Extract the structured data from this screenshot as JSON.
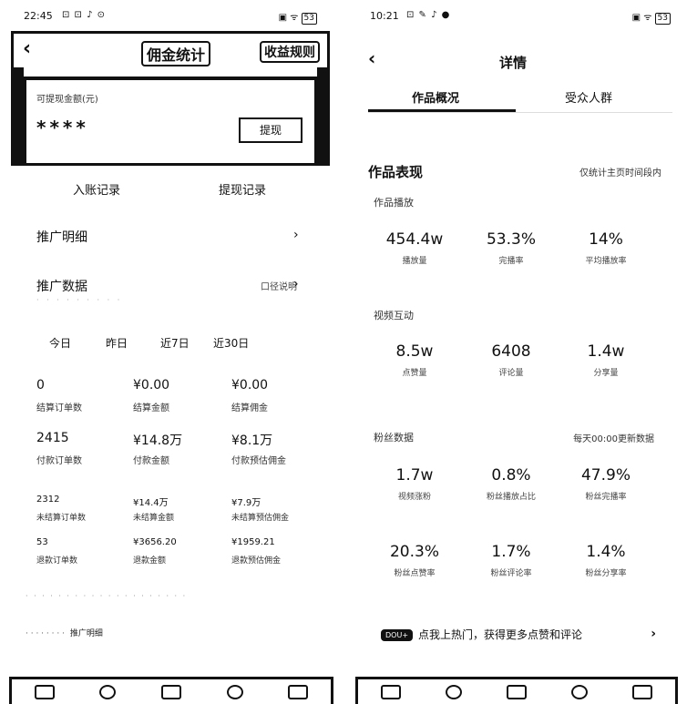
{
  "left": {
    "status": {
      "time": "22:45",
      "icons": "⊡ ⊡ ♪ ⊙",
      "right_icons": "▣ ᯤ",
      "battery": "53"
    },
    "header": {
      "back_icon": "‹",
      "title": "佣金统计",
      "rule_label": "收益规则"
    },
    "balance": {
      "label": "可提现金额(元)",
      "value": "****",
      "withdraw_label": "提现"
    },
    "tabs": [
      "入账记录",
      "提现记录"
    ],
    "rows": {
      "detail": "推广明细",
      "data": "推广数据",
      "data_hint": "口径说明",
      "data_sub": "· · · · · · · · ·"
    },
    "periods": [
      "今日",
      "昨日",
      "近7日",
      "近30日"
    ],
    "grid": [
      [
        {
          "value": "0",
          "label": "结算订单数"
        },
        {
          "value": "¥0.00",
          "label": "结算金额"
        },
        {
          "value": "¥0.00",
          "label": "结算佣金"
        }
      ],
      [
        {
          "value": "2415",
          "label": "付款订单数"
        },
        {
          "value": "¥14.8万",
          "label": "付款金额"
        },
        {
          "value": "¥8.1万",
          "label": "付款预估佣金"
        }
      ],
      [
        {
          "value": "2312",
          "label": "未结算订单数"
        },
        {
          "value": "¥14.4万",
          "label": "未结算金额"
        },
        {
          "value": "¥7.9万",
          "label": "未结算预估佣金"
        }
      ],
      [
        {
          "value": "53",
          "label": "退款订单数"
        },
        {
          "value": "¥3656.20",
          "label": "退款金额"
        },
        {
          "value": "¥1959.21",
          "label": "退款预估佣金"
        }
      ]
    ],
    "footer": {
      "line1": "· · · · · · · · · · · · · · · · · · · ·",
      "line2": "· · · · · · · ·",
      "link": "推广明细"
    }
  },
  "right": {
    "status": {
      "time": "10:21",
      "icons": "⊡ ✎ ♪ ●",
      "right_icons": "▣ ᯤ",
      "battery": "53"
    },
    "header": {
      "back_icon": "‹",
      "title": "详情"
    },
    "tabs": [
      "作品概况",
      "受众人群"
    ],
    "section": {
      "title": "作品表现",
      "hint": "仅统计主页时间段内"
    },
    "groups": [
      {
        "title": "作品播放",
        "hint": "",
        "metrics": [
          {
            "value": "454.4w",
            "label": "播放量"
          },
          {
            "value": "53.3%",
            "label": "完播率"
          },
          {
            "value": "14%",
            "label": "平均播放率"
          }
        ]
      },
      {
        "title": "视频互动",
        "hint": "",
        "metrics": [
          {
            "value": "8.5w",
            "label": "点赞量"
          },
          {
            "value": "6408",
            "label": "评论量"
          },
          {
            "value": "1.4w",
            "label": "分享量"
          }
        ]
      },
      {
        "title": "粉丝数据",
        "hint": "每天00:00更新数据",
        "metrics": [
          {
            "value": "1.7w",
            "label": "视频涨粉"
          },
          {
            "value": "0.8%",
            "label": "粉丝播放占比"
          },
          {
            "value": "47.9%",
            "label": "粉丝完播率"
          }
        ],
        "metrics2": [
          {
            "value": "20.3%",
            "label": "粉丝点赞率"
          },
          {
            "value": "1.7%",
            "label": "粉丝评论率"
          },
          {
            "value": "1.4%",
            "label": "粉丝分享率"
          }
        ]
      }
    ],
    "promo": {
      "tag": "DOU+",
      "text": "点我上热门，获得更多点赞和评论",
      "arrow": "›"
    }
  }
}
